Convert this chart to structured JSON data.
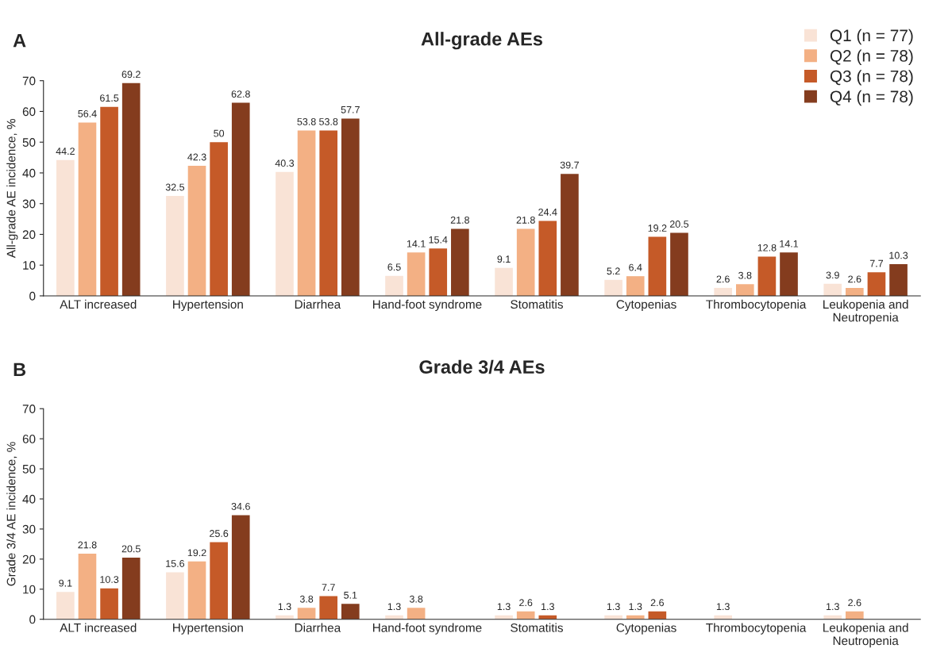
{
  "chart_data": [
    {
      "type": "bar",
      "title": "All-grade AEs",
      "ylabel": "All-grade AE incidence, %",
      "annotations": [
        "A"
      ],
      "categories": [
        "ALT increased",
        "Hypertension",
        "Diarrhea",
        "Hand-foot syndrome",
        "Stomatitis",
        "Cytopenias",
        "Thrombocytopenia",
        "Leukopenia and\nNeutropenia"
      ],
      "series": [
        {
          "name": "Q1 (n = 77)",
          "color": "#f9e3d6",
          "values": [
            44.2,
            32.5,
            40.3,
            6.5,
            9.1,
            5.2,
            2.6,
            3.9
          ]
        },
        {
          "name": "Q2 (n = 78)",
          "color": "#f3b084",
          "values": [
            56.4,
            42.3,
            53.8,
            14.1,
            21.8,
            6.4,
            3.8,
            2.6
          ]
        },
        {
          "name": "Q3 (n = 78)",
          "color": "#c55a28",
          "values": [
            61.5,
            50,
            53.8,
            15.4,
            24.4,
            19.2,
            12.8,
            7.7
          ]
        },
        {
          "name": "Q4 (n = 78)",
          "color": "#843c1e",
          "values": [
            69.2,
            62.8,
            57.7,
            21.8,
            39.7,
            20.5,
            14.1,
            10.3
          ]
        }
      ],
      "ylim": [
        0,
        70
      ],
      "yticks": [
        0,
        10,
        20,
        30,
        40,
        50,
        60,
        70
      ],
      "data_labels": true,
      "legend": "top right"
    },
    {
      "type": "bar",
      "title": "Grade 3/4 AEs",
      "ylabel": "Grade 3/4 AE incidence, %",
      "annotations": [
        "B"
      ],
      "categories": [
        "ALT increased",
        "Hypertension",
        "Diarrhea",
        "Hand-foot syndrome",
        "Stomatitis",
        "Cytopenias",
        "Thrombocytopenia",
        "Leukopenia and\nNeutropenia"
      ],
      "series": [
        {
          "color": "#f9e3d6",
          "values": [
            9.1,
            15.6,
            1.3,
            1.3,
            1.3,
            1.3,
            1.3,
            1.3
          ]
        },
        {
          "color": "#f3b084",
          "values": [
            21.8,
            19.2,
            3.8,
            3.8,
            2.6,
            1.3,
            null,
            2.6
          ]
        },
        {
          "color": "#c55a28",
          "values": [
            10.3,
            25.6,
            7.7,
            null,
            1.3,
            2.6,
            null,
            null
          ]
        },
        {
          "color": "#843c1e",
          "values": [
            20.5,
            34.6,
            5.1,
            null,
            null,
            null,
            null,
            null
          ]
        }
      ],
      "ylim": [
        0,
        70
      ],
      "yticks": [
        0,
        10,
        20,
        30,
        40,
        50,
        60,
        70
      ],
      "data_labels": true
    }
  ]
}
